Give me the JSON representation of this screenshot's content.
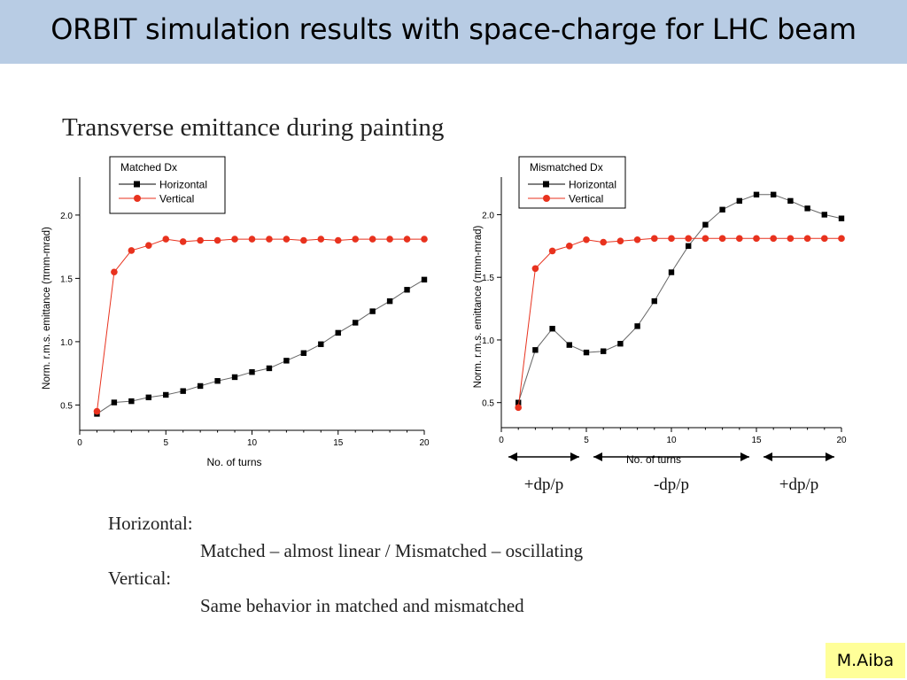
{
  "slide": {
    "title": "ORBIT simulation results with space-charge for LHC beam",
    "subtitle": "Transverse emittance during painting",
    "credit": "M.Aiba"
  },
  "arrows": [
    {
      "label": "+dp/p",
      "from": 0,
      "to": 5
    },
    {
      "label": "-dp/p",
      "from": 5,
      "to": 15
    },
    {
      "label": "+dp/p",
      "from": 15,
      "to": 20
    }
  ],
  "notes": [
    {
      "text": "Horizontal:",
      "indent": false
    },
    {
      "text": "Matched – almost linear / Mismatched – oscillating",
      "indent": true
    },
    {
      "text": "Vertical:",
      "indent": false
    },
    {
      "text": "Same behavior in matched and mismatched",
      "indent": true
    }
  ],
  "chart_data": [
    {
      "type": "line",
      "legend_title": "Matched Dx",
      "xlabel": "No. of turns",
      "ylabel": "Norm. r.m.s. emittance (πmm-mrad)",
      "xlim": [
        0,
        20
      ],
      "ylim": [
        0.3,
        2.3
      ],
      "xticks": [
        "0",
        "5",
        "10",
        "15",
        "20"
      ],
      "yticks": [
        "0.5",
        "1.0",
        "1.5",
        "2.0"
      ],
      "legend_position": "top-left",
      "grid": false,
      "x": [
        1,
        2,
        3,
        4,
        5,
        6,
        7,
        8,
        9,
        10,
        11,
        12,
        13,
        14,
        15,
        16,
        17,
        18,
        19,
        20
      ],
      "series": [
        {
          "name": "Horizontal",
          "color": "#000000",
          "marker": "square",
          "values": [
            0.43,
            0.52,
            0.53,
            0.56,
            0.58,
            0.61,
            0.65,
            0.69,
            0.72,
            0.76,
            0.79,
            0.85,
            0.91,
            0.98,
            1.07,
            1.15,
            1.24,
            1.32,
            1.41,
            1.49
          ]
        },
        {
          "name": "Vertical",
          "color": "#e8321e",
          "marker": "circle",
          "values": [
            0.45,
            1.55,
            1.72,
            1.76,
            1.81,
            1.79,
            1.8,
            1.8,
            1.81,
            1.81,
            1.81,
            1.81,
            1.8,
            1.81,
            1.8,
            1.81,
            1.81,
            1.81,
            1.81,
            1.81
          ]
        }
      ]
    },
    {
      "type": "line",
      "legend_title": "Mismatched Dx",
      "xlabel": "No. of turns",
      "ylabel": "Norm. r.m.s. emittance (πmm-mrad)",
      "xlim": [
        0,
        20
      ],
      "ylim": [
        0.3,
        2.3
      ],
      "xticks": [
        "0",
        "5",
        "10",
        "15",
        "20"
      ],
      "yticks": [
        "0.5",
        "1.0",
        "1.5",
        "2.0"
      ],
      "legend_position": "top-left",
      "grid": false,
      "x": [
        1,
        2,
        3,
        4,
        5,
        6,
        7,
        8,
        9,
        10,
        11,
        12,
        13,
        14,
        15,
        16,
        17,
        18,
        19,
        20
      ],
      "series": [
        {
          "name": "Horizontal",
          "color": "#000000",
          "marker": "square",
          "values": [
            0.5,
            0.92,
            1.09,
            0.96,
            0.9,
            0.91,
            0.97,
            1.11,
            1.31,
            1.54,
            1.75,
            1.92,
            2.04,
            2.11,
            2.16,
            2.16,
            2.11,
            2.05,
            2.0,
            1.97
          ]
        },
        {
          "name": "Vertical",
          "color": "#e8321e",
          "marker": "circle",
          "values": [
            0.46,
            1.57,
            1.71,
            1.75,
            1.8,
            1.78,
            1.79,
            1.8,
            1.81,
            1.81,
            1.81,
            1.81,
            1.81,
            1.81,
            1.81,
            1.81,
            1.81,
            1.81,
            1.81,
            1.81
          ]
        }
      ]
    }
  ]
}
